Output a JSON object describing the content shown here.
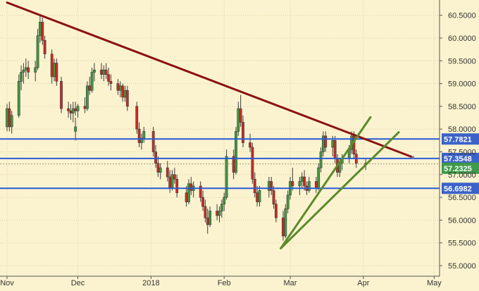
{
  "chart_data": {
    "type": "candlestick",
    "title": "",
    "xlabel": "",
    "ylabel": "",
    "x_ticks": [
      "Nov",
      "Dec",
      "2018",
      "Feb",
      "Mar",
      "Apr",
      "May"
    ],
    "y_ticks": [
      "55.0000",
      "55.5000",
      "56.0000",
      "56.5000",
      "57.0000",
      "57.5000",
      "58.0000",
      "58.5000",
      "59.0000",
      "59.5000",
      "60.0000",
      "60.5000"
    ],
    "ylim": [
      54.85,
      60.72
    ],
    "grid": true,
    "colors": {
      "background": "#fbf3cf",
      "grid": "#d9cfa6",
      "up_candle": "#3f9a3f",
      "down_candle": "#cc2a22",
      "trend_line": "#8b1111",
      "support_lines": "#5b8a2a",
      "levels": "#2a5ad8",
      "label_box": "#3b62c8",
      "current_box": "#3f9a4a"
    },
    "horizontal_levels": [
      {
        "value": 57.7821,
        "label": "57.7821"
      },
      {
        "value": 57.3548,
        "label": "57.3548"
      },
      {
        "value": 56.6982,
        "label": "56.6982"
      }
    ],
    "current_price": {
      "value": 57.2325,
      "label": "57.2325"
    },
    "trendlines": [
      {
        "role": "resistance",
        "from": {
          "x": "Nov 1",
          "y": 60.78
        },
        "to": {
          "x": "Apr 22",
          "y": 57.38
        }
      },
      {
        "role": "support",
        "from": {
          "x": "Feb 25",
          "y": 55.38
        },
        "to": {
          "x": "Apr 4",
          "y": 58.26
        }
      },
      {
        "role": "support",
        "from": {
          "x": "Feb 25",
          "y": 55.38
        },
        "to": {
          "x": "Apr 16",
          "y": 57.93
        }
      }
    ],
    "candles": [
      {
        "date": "Oct 31",
        "o": 57.95,
        "h": 58.25,
        "l": 57.75,
        "c": 58.05
      },
      {
        "date": "Nov 1",
        "o": 58.05,
        "h": 58.55,
        "l": 57.95,
        "c": 58.45
      },
      {
        "date": "Nov 2",
        "o": 58.45,
        "h": 58.6,
        "l": 57.95,
        "c": 58.05
      },
      {
        "date": "Nov 3",
        "o": 58.05,
        "h": 58.4,
        "l": 57.9,
        "c": 58.3
      },
      {
        "date": "Nov 6",
        "o": 58.3,
        "h": 59.2,
        "l": 58.25,
        "c": 59.05
      },
      {
        "date": "Nov 7",
        "o": 59.05,
        "h": 59.4,
        "l": 58.85,
        "c": 59.25
      },
      {
        "date": "Nov 8",
        "o": 59.25,
        "h": 59.45,
        "l": 59.0,
        "c": 59.3
      },
      {
        "date": "Nov 9",
        "o": 59.3,
        "h": 59.55,
        "l": 59.15,
        "c": 59.35
      },
      {
        "date": "Nov 10",
        "o": 59.35,
        "h": 59.5,
        "l": 59.1,
        "c": 59.25
      },
      {
        "date": "Nov 13",
        "o": 59.25,
        "h": 59.5,
        "l": 59.05,
        "c": 59.35
      },
      {
        "date": "Nov 14",
        "o": 59.35,
        "h": 60.2,
        "l": 59.3,
        "c": 60.05
      },
      {
        "date": "Nov 15",
        "o": 60.05,
        "h": 60.5,
        "l": 59.9,
        "c": 60.35
      },
      {
        "date": "Nov 16",
        "o": 60.35,
        "h": 60.45,
        "l": 59.85,
        "c": 59.95
      },
      {
        "date": "Nov 17",
        "o": 59.95,
        "h": 60.05,
        "l": 59.55,
        "c": 59.65
      },
      {
        "date": "Nov 20",
        "o": 59.65,
        "h": 59.75,
        "l": 59.0,
        "c": 59.15
      },
      {
        "date": "Nov 21",
        "o": 59.15,
        "h": 59.55,
        "l": 59.05,
        "c": 59.45
      },
      {
        "date": "Nov 22",
        "o": 59.45,
        "h": 59.55,
        "l": 58.95,
        "c": 59.05
      },
      {
        "date": "Nov 24",
        "o": 59.05,
        "h": 59.15,
        "l": 58.35,
        "c": 58.45
      },
      {
        "date": "Nov 27",
        "o": 58.45,
        "h": 58.6,
        "l": 58.25,
        "c": 58.4
      },
      {
        "date": "Nov 28",
        "o": 58.4,
        "h": 58.55,
        "l": 58.2,
        "c": 58.35
      },
      {
        "date": "Nov 29",
        "o": 58.35,
        "h": 58.6,
        "l": 58.15,
        "c": 58.45
      },
      {
        "date": "Nov 30",
        "o": 58.45,
        "h": 58.6,
        "l": 58.3,
        "c": 58.4
      },
      {
        "date": "Dec 1",
        "o": 58.4,
        "h": 58.55,
        "l": 58.25,
        "c": 58.5
      },
      {
        "date": "Dec 4",
        "o": 58.5,
        "h": 58.7,
        "l": 58.35,
        "c": 58.45
      },
      {
        "date": "Dec 5",
        "o": 58.45,
        "h": 59.05,
        "l": 58.4,
        "c": 58.95
      },
      {
        "date": "Dec 6",
        "o": 58.95,
        "h": 59.15,
        "l": 58.75,
        "c": 58.85
      },
      {
        "date": "Dec 7",
        "o": 58.85,
        "h": 59.35,
        "l": 58.8,
        "c": 59.25
      },
      {
        "date": "Dec 8",
        "o": 59.25,
        "h": 59.45,
        "l": 59.05,
        "c": 59.3
      },
      {
        "date": "Dec 11",
        "o": 59.3,
        "h": 59.45,
        "l": 59.1,
        "c": 59.2
      },
      {
        "date": "Dec 12",
        "o": 59.2,
        "h": 59.4,
        "l": 59.05,
        "c": 59.3
      },
      {
        "date": "Dec 13",
        "o": 59.3,
        "h": 59.45,
        "l": 59.1,
        "c": 59.2
      },
      {
        "date": "Dec 14",
        "o": 59.2,
        "h": 59.35,
        "l": 58.95,
        "c": 59.05
      },
      {
        "date": "Dec 15",
        "o": 59.05,
        "h": 59.2,
        "l": 58.85,
        "c": 59.0
      },
      {
        "date": "Dec 18",
        "o": 59.0,
        "h": 59.1,
        "l": 58.75,
        "c": 58.85
      },
      {
        "date": "Dec 19",
        "o": 58.85,
        "h": 59.05,
        "l": 58.7,
        "c": 58.95
      },
      {
        "date": "Dec 20",
        "o": 58.95,
        "h": 59.0,
        "l": 58.6,
        "c": 58.7
      },
      {
        "date": "Dec 21",
        "o": 58.7,
        "h": 58.95,
        "l": 58.6,
        "c": 58.85
      },
      {
        "date": "Dec 22",
        "o": 58.85,
        "h": 58.95,
        "l": 58.4,
        "c": 58.5
      },
      {
        "date": "Dec 26",
        "o": 58.5,
        "h": 58.6,
        "l": 57.9,
        "c": 58.0
      },
      {
        "date": "Dec 27",
        "o": 58.0,
        "h": 58.15,
        "l": 57.6,
        "c": 57.7
      },
      {
        "date": "Dec 28",
        "o": 57.7,
        "h": 57.9,
        "l": 57.55,
        "c": 57.8
      },
      {
        "date": "Dec 29",
        "o": 57.8,
        "h": 58.05,
        "l": 57.7,
        "c": 57.95
      },
      {
        "date": "Jan 2",
        "o": 57.95,
        "h": 58.05,
        "l": 57.4,
        "c": 57.5
      },
      {
        "date": "Jan 3",
        "o": 57.5,
        "h": 57.65,
        "l": 57.15,
        "c": 57.25
      },
      {
        "date": "Jan 4",
        "o": 57.25,
        "h": 57.4,
        "l": 56.95,
        "c": 57.05
      },
      {
        "date": "Jan 5",
        "o": 57.05,
        "h": 57.25,
        "l": 56.9,
        "c": 57.15
      },
      {
        "date": "Jan 8",
        "o": 57.15,
        "h": 57.3,
        "l": 56.85,
        "c": 56.95
      },
      {
        "date": "Jan 9",
        "o": 56.95,
        "h": 57.1,
        "l": 56.6,
        "c": 56.7
      },
      {
        "date": "Jan 10",
        "o": 56.7,
        "h": 57.1,
        "l": 56.65,
        "c": 57.0
      },
      {
        "date": "Jan 11",
        "o": 57.0,
        "h": 57.15,
        "l": 56.8,
        "c": 56.9
      },
      {
        "date": "Jan 12",
        "o": 56.9,
        "h": 57.0,
        "l": 56.5,
        "c": 56.6
      },
      {
        "date": "Jan 16",
        "o": 56.6,
        "h": 56.75,
        "l": 56.3,
        "c": 56.4
      },
      {
        "date": "Jan 17",
        "o": 56.4,
        "h": 56.9,
        "l": 56.35,
        "c": 56.8
      },
      {
        "date": "Jan 18",
        "o": 56.8,
        "h": 56.95,
        "l": 56.55,
        "c": 56.65
      },
      {
        "date": "Jan 19",
        "o": 56.65,
        "h": 56.85,
        "l": 56.5,
        "c": 56.75
      },
      {
        "date": "Jan 22",
        "o": 56.75,
        "h": 56.85,
        "l": 56.4,
        "c": 56.5
      },
      {
        "date": "Jan 23",
        "o": 56.5,
        "h": 56.65,
        "l": 56.2,
        "c": 56.3
      },
      {
        "date": "Jan 24",
        "o": 56.3,
        "h": 56.45,
        "l": 55.95,
        "c": 56.05
      },
      {
        "date": "Jan 25",
        "o": 56.05,
        "h": 56.25,
        "l": 55.7,
        "c": 55.9
      },
      {
        "date": "Jan 26",
        "o": 55.9,
        "h": 56.3,
        "l": 55.85,
        "c": 56.2
      },
      {
        "date": "Jan 29",
        "o": 56.2,
        "h": 56.35,
        "l": 56.0,
        "c": 56.1
      },
      {
        "date": "Jan 30",
        "o": 56.1,
        "h": 56.3,
        "l": 55.95,
        "c": 56.2
      },
      {
        "date": "Jan 31",
        "o": 56.2,
        "h": 56.45,
        "l": 56.05,
        "c": 56.35
      },
      {
        "date": "Feb 1",
        "o": 56.35,
        "h": 56.6,
        "l": 56.2,
        "c": 56.5
      },
      {
        "date": "Feb 2",
        "o": 56.5,
        "h": 57.55,
        "l": 56.45,
        "c": 57.4
      },
      {
        "date": "Feb 5",
        "o": 57.4,
        "h": 57.55,
        "l": 56.9,
        "c": 57.05
      },
      {
        "date": "Feb 6",
        "o": 57.05,
        "h": 58.05,
        "l": 57.0,
        "c": 57.95
      },
      {
        "date": "Feb 7",
        "o": 57.95,
        "h": 58.6,
        "l": 57.85,
        "c": 58.45
      },
      {
        "date": "Feb 8",
        "o": 58.45,
        "h": 58.75,
        "l": 58.05,
        "c": 58.15
      },
      {
        "date": "Feb 9",
        "o": 58.15,
        "h": 58.3,
        "l": 57.6,
        "c": 57.7
      },
      {
        "date": "Feb 12",
        "o": 57.7,
        "h": 57.9,
        "l": 57.5,
        "c": 57.6
      },
      {
        "date": "Feb 13",
        "o": 57.6,
        "h": 57.7,
        "l": 56.8,
        "c": 56.9
      },
      {
        "date": "Feb 14",
        "o": 56.9,
        "h": 57.05,
        "l": 56.5,
        "c": 56.6
      },
      {
        "date": "Feb 15",
        "o": 56.6,
        "h": 56.75,
        "l": 56.3,
        "c": 56.4
      },
      {
        "date": "Feb 16",
        "o": 56.4,
        "h": 56.75,
        "l": 56.3,
        "c": 56.65
      },
      {
        "date": "Feb 20",
        "o": 56.65,
        "h": 56.95,
        "l": 56.5,
        "c": 56.85
      },
      {
        "date": "Feb 21",
        "o": 56.85,
        "h": 56.95,
        "l": 56.55,
        "c": 56.65
      },
      {
        "date": "Feb 22",
        "o": 56.65,
        "h": 56.75,
        "l": 56.25,
        "c": 56.35
      },
      {
        "date": "Feb 23",
        "o": 56.35,
        "h": 56.45,
        "l": 55.95,
        "c": 56.05
      },
      {
        "date": "Feb 26",
        "o": 56.05,
        "h": 56.2,
        "l": 55.55,
        "c": 55.65
      },
      {
        "date": "Feb 27",
        "o": 55.65,
        "h": 56.35,
        "l": 55.6,
        "c": 56.25
      },
      {
        "date": "Feb 28",
        "o": 56.25,
        "h": 56.65,
        "l": 56.15,
        "c": 56.55
      },
      {
        "date": "Mar 1",
        "o": 56.55,
        "h": 56.95,
        "l": 56.45,
        "c": 56.85
      },
      {
        "date": "Mar 2",
        "o": 56.85,
        "h": 57.15,
        "l": 56.65,
        "c": 56.75
      },
      {
        "date": "Mar 5",
        "o": 56.75,
        "h": 56.95,
        "l": 56.55,
        "c": 56.85
      },
      {
        "date": "Mar 6",
        "o": 56.85,
        "h": 57.05,
        "l": 56.7,
        "c": 56.95
      },
      {
        "date": "Mar 7",
        "o": 56.95,
        "h": 57.1,
        "l": 56.65,
        "c": 56.75
      },
      {
        "date": "Mar 8",
        "o": 56.75,
        "h": 56.85,
        "l": 56.55,
        "c": 56.65
      },
      {
        "date": "Mar 9",
        "o": 56.65,
        "h": 56.95,
        "l": 56.6,
        "c": 56.85
      },
      {
        "date": "Mar 12",
        "o": 56.85,
        "h": 56.95,
        "l": 56.6,
        "c": 56.7
      },
      {
        "date": "Mar 13",
        "o": 56.7,
        "h": 57.25,
        "l": 56.65,
        "c": 57.15
      },
      {
        "date": "Mar 14",
        "o": 57.15,
        "h": 57.6,
        "l": 57.05,
        "c": 57.5
      },
      {
        "date": "Mar 15",
        "o": 57.5,
        "h": 57.95,
        "l": 57.4,
        "c": 57.85
      },
      {
        "date": "Mar 16",
        "o": 57.85,
        "h": 57.95,
        "l": 57.5,
        "c": 57.6
      },
      {
        "date": "Mar 19",
        "o": 57.6,
        "h": 57.85,
        "l": 57.4,
        "c": 57.75
      },
      {
        "date": "Mar 20",
        "o": 57.75,
        "h": 57.85,
        "l": 57.25,
        "c": 57.35
      },
      {
        "date": "Mar 21",
        "o": 57.35,
        "h": 57.45,
        "l": 56.95,
        "c": 57.05
      },
      {
        "date": "Mar 22",
        "o": 57.05,
        "h": 57.35,
        "l": 56.95,
        "c": 57.25
      },
      {
        "date": "Mar 23",
        "o": 57.25,
        "h": 57.45,
        "l": 57.1,
        "c": 57.35
      },
      {
        "date": "Mar 26",
        "o": 57.35,
        "h": 57.65,
        "l": 57.25,
        "c": 57.55
      },
      {
        "date": "Mar 27",
        "o": 57.55,
        "h": 57.95,
        "l": 57.45,
        "c": 57.85
      },
      {
        "date": "Mar 28",
        "o": 57.85,
        "h": 57.95,
        "l": 57.35,
        "c": 57.45
      },
      {
        "date": "Mar 29",
        "o": 57.45,
        "h": 57.55,
        "l": 57.15,
        "c": 57.25
      },
      {
        "date": "Apr 2",
        "o": 57.25,
        "h": 57.35,
        "l": 57.1,
        "c": 57.2325
      }
    ]
  }
}
